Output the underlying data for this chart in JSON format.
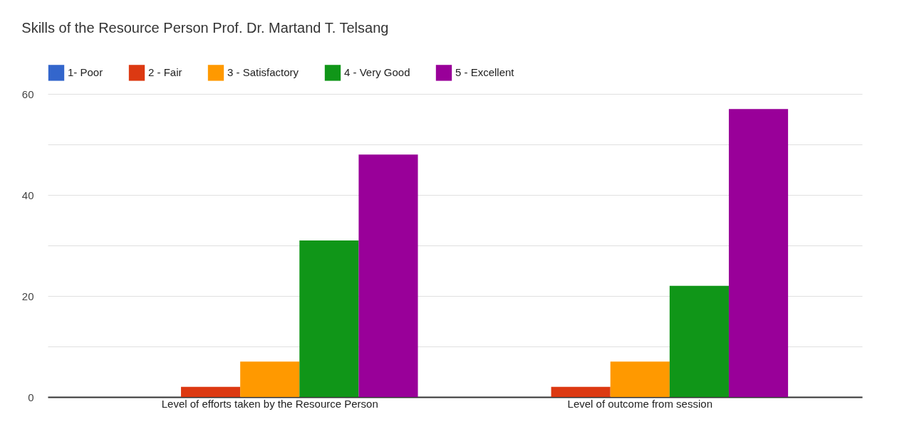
{
  "chart_data": {
    "type": "bar",
    "title": "Skills of the Resource Person Prof. Dr. Martand T. Telsang",
    "categories": [
      "Level of efforts taken by the Resource Person",
      "Level of outcome from session"
    ],
    "series": [
      {
        "name": "1- Poor",
        "color": "#3366cc",
        "values": [
          0,
          0
        ]
      },
      {
        "name": "2 - Fair",
        "color": "#dc3912",
        "values": [
          2,
          2
        ]
      },
      {
        "name": "3 - Satisfactory",
        "color": "#ff9900",
        "values": [
          7,
          7
        ]
      },
      {
        "name": "4 - Very Good",
        "color": "#109618",
        "values": [
          31,
          22
        ]
      },
      {
        "name": "5 - Excellent",
        "color": "#990099",
        "values": [
          48,
          57
        ]
      }
    ],
    "ylim": [
      0,
      60
    ],
    "yticks": [
      0,
      {
        "value": 10,
        "label": null
      },
      20,
      {
        "value": 30,
        "label": null
      },
      40,
      {
        "value": 50,
        "label": null
      },
      60
    ],
    "grid": "y",
    "legend": "top"
  }
}
